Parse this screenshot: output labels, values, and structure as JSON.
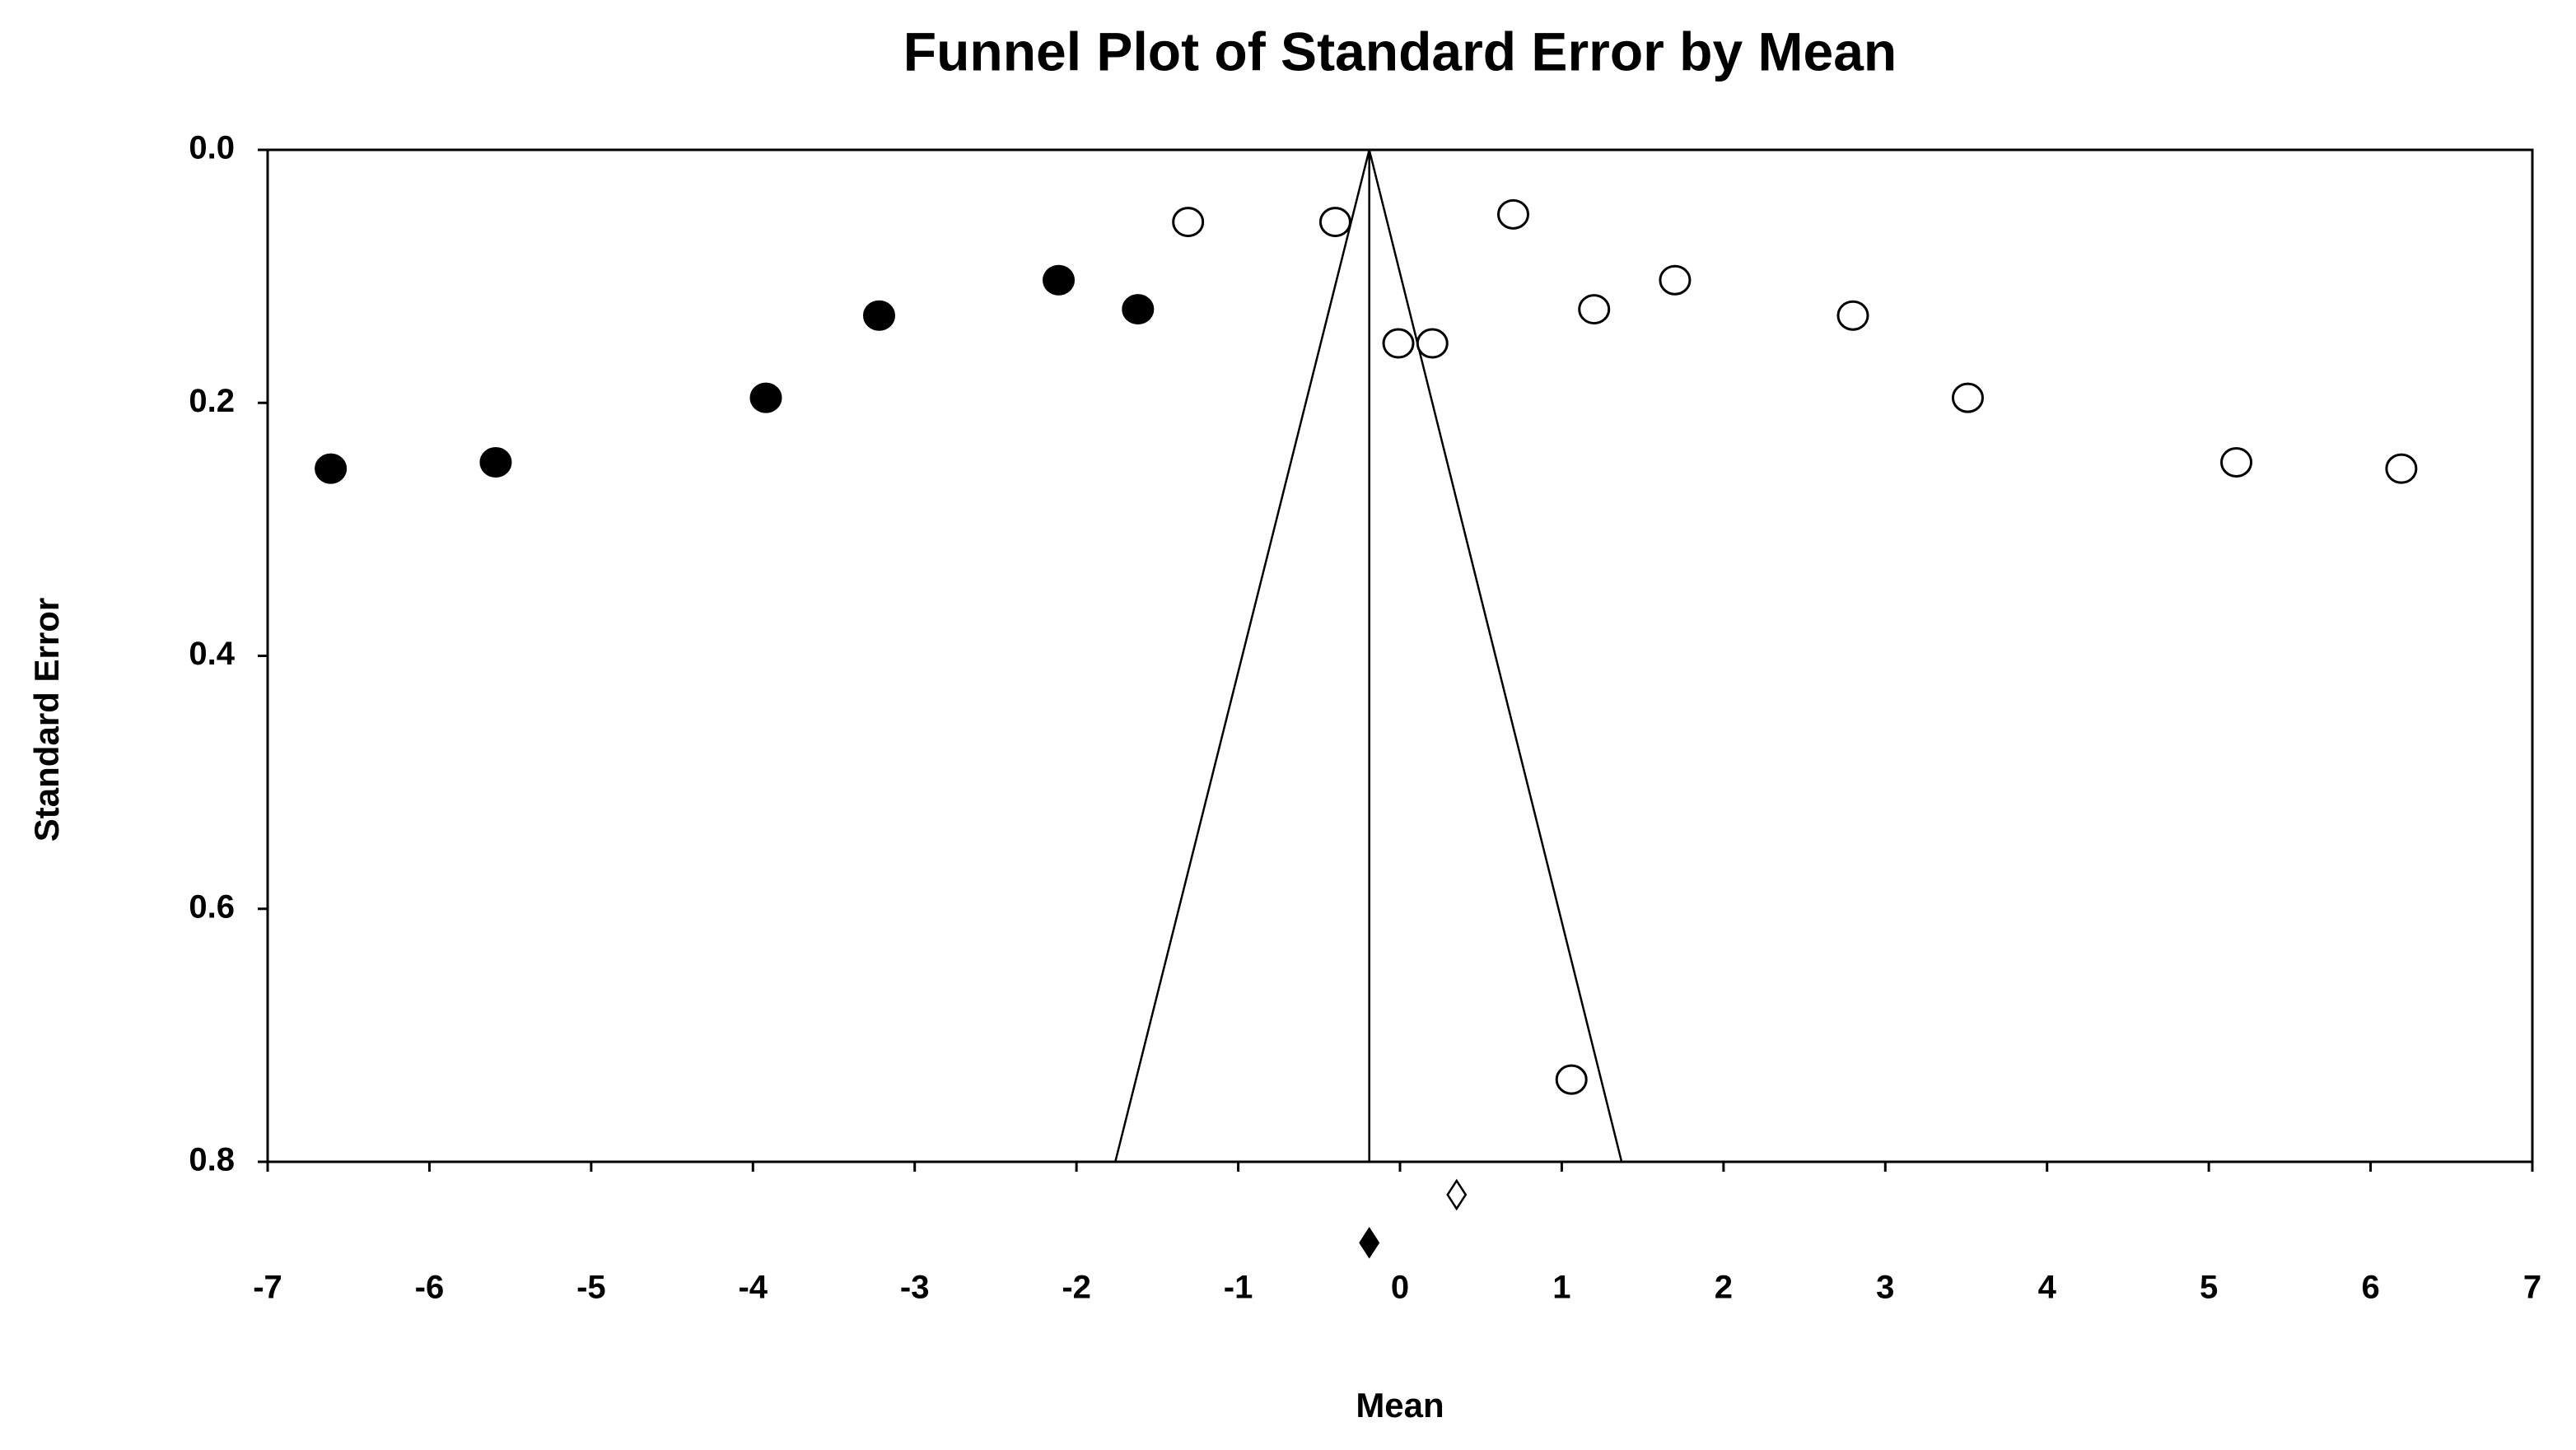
{
  "chart_data": {
    "type": "scatter",
    "title": "Funnel Plot of Standard Error by Mean",
    "x_label": "Mean",
    "y_label": "Standard Error",
    "xlim": [
      -7,
      7
    ],
    "ylim": [
      0,
      0.8
    ],
    "y_inverted": true,
    "xticks": [
      -7,
      -6,
      -5,
      -4,
      -3,
      -2,
      -1,
      0,
      1,
      2,
      3,
      4,
      5,
      6,
      7
    ],
    "yticks": [
      {
        "value": 0,
        "label": "0.0"
      },
      0.2,
      0.4,
      0.6,
      0.8
    ],
    "series": [
      {
        "marker": "open",
        "color": "#000000",
        "x": [
          -1.31,
          -0.4,
          0.7,
          -0.01,
          0.2,
          1.2,
          1.7,
          2.8,
          3.51,
          5.17,
          6.19,
          1.06
        ],
        "values": [
          0.057,
          0.057,
          0.051,
          0.153,
          0.153,
          0.126,
          0.103,
          0.131,
          0.196,
          0.247,
          0.252,
          0.735
        ]
      },
      {
        "marker": "filled",
        "color": "#000000",
        "x": [
          -6.61,
          -5.59,
          -3.92,
          -3.22,
          -2.11,
          -1.62
        ],
        "values": [
          0.252,
          0.247,
          0.196,
          0.131,
          0.103,
          0.126
        ]
      }
    ],
    "funnel": {
      "x": [
        -1.76,
        -0.19,
        1.37
      ],
      "y": [
        0.8,
        0,
        0.8
      ]
    },
    "mean_line": -0.19,
    "summary": [
      {
        "marker": "open",
        "x": 0.35,
        "y": 0.826
      },
      {
        "marker": "filled",
        "x": -0.19,
        "y": 0.864
      }
    ]
  }
}
